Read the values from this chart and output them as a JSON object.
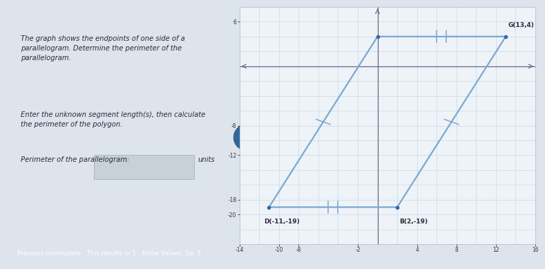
{
  "title_text": "The graph shows the endpoints of one side of a\nparallelogram. Determine the perimeter of the\nparallelogram.",
  "instruction_text": "Enter the unknown segment length(s), then calculate\nthe perimeter of the polygon.",
  "perimeter_label": "Perimeter of the parallelogram:",
  "perimeter_units": "units",
  "points": {
    "D": [
      -11,
      -19
    ],
    "B": [
      2,
      -19
    ],
    "G": [
      13,
      4
    ],
    "A": [
      0,
      4
    ]
  },
  "point_labels": {
    "D": "D(-11,-19)",
    "B": "B(2,-19)",
    "G": "G(13,4)",
    "A": ""
  },
  "parallelogram_color": "#7aa8d0",
  "point_color": "#3366aa",
  "xlim": [
    -14,
    16
  ],
  "ylim": [
    -24,
    8
  ],
  "x_major_ticks": [
    -14,
    -12,
    -10,
    -8,
    -6,
    -4,
    -2,
    0,
    2,
    4,
    6,
    8,
    10,
    12,
    14,
    16
  ],
  "y_major_ticks": [
    -24,
    -22,
    -20,
    -18,
    -16,
    -14,
    -12,
    -10,
    -8,
    -6,
    -4,
    -2,
    0,
    2,
    4,
    6,
    8
  ],
  "x_label_ticks": [
    -14,
    -10,
    -8,
    -2,
    4,
    8,
    12,
    16
  ],
  "y_label_ticks": [
    -20,
    -18,
    -12,
    -8,
    6
  ],
  "grid_color": "#c8d8e8",
  "axis_color": "#666688",
  "bg_color_left": "#dde4ec",
  "bg_color_right": "#edf2f7",
  "graph_bg": "#eef3f8",
  "text_color": "#2a2a3a",
  "input_box_color": "#c8d0d8",
  "fig_width": 7.65,
  "fig_height": 3.69,
  "bottom_bar_color": "#3399aa",
  "bottom_bar_text": "Previous Incomplete   This results in 5   Know Values: 5a, 5"
}
